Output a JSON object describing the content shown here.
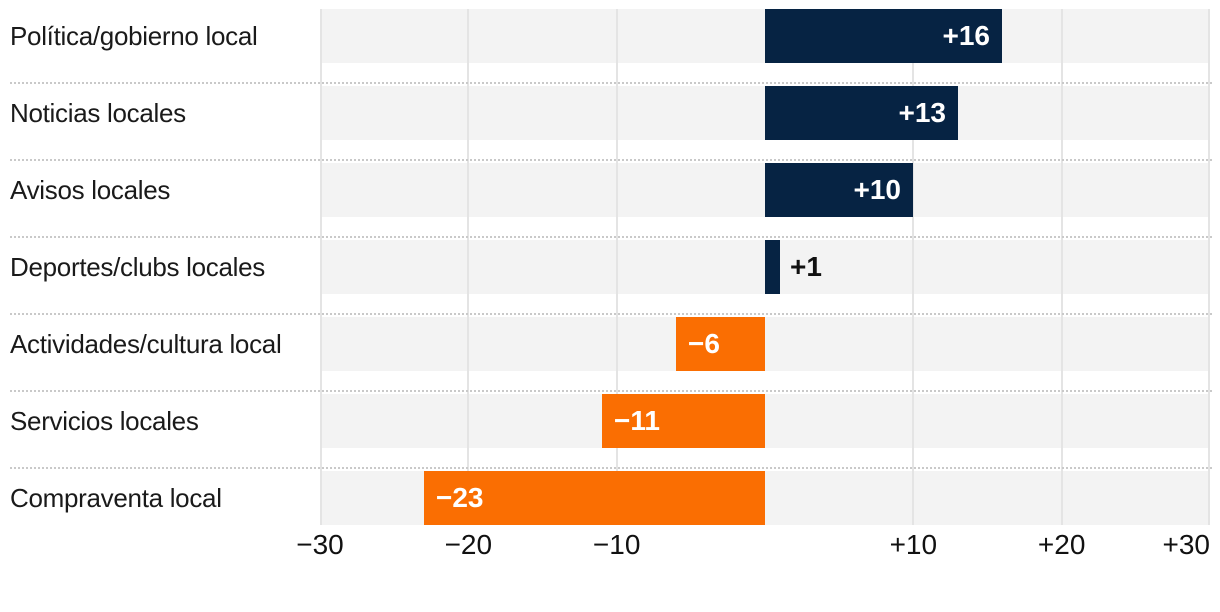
{
  "chart_data": {
    "type": "bar",
    "orientation": "horizontal-diverging",
    "title": "",
    "xlabel": "",
    "ylabel": "",
    "xlim": [
      -30,
      30
    ],
    "grid": "vertical-gridlines-at-ticks-no-zero-line",
    "legend": "none",
    "categories": [
      "Política/gobierno local",
      "Noticias locales",
      "Avisos locales",
      "Deportes/clubs locales",
      "Actividades/cultura local",
      "Servicios locales",
      "Compraventa local"
    ],
    "values": [
      16,
      13,
      10,
      1,
      -6,
      -11,
      -23
    ],
    "rows": [
      {
        "label": "Política/gobierno local",
        "value": 16,
        "display": "+16",
        "label_position": "inside"
      },
      {
        "label": "Noticias locales",
        "value": 13,
        "display": "+13",
        "label_position": "inside"
      },
      {
        "label": "Avisos locales",
        "value": 10,
        "display": "+10",
        "label_position": "inside"
      },
      {
        "label": "Deportes/clubs locales",
        "value": 1,
        "display": "+1",
        "label_position": "outside"
      },
      {
        "label": "Actividades/cultura local",
        "value": -6,
        "display": "−6",
        "label_position": "inside"
      },
      {
        "label": "Servicios locales",
        "value": -11,
        "display": "−11",
        "label_position": "inside"
      },
      {
        "label": "Compraventa local",
        "value": -23,
        "display": "−23",
        "label_position": "inside"
      }
    ],
    "x_ticks": [
      {
        "value": -30,
        "label": "−30"
      },
      {
        "value": -20,
        "label": "−20"
      },
      {
        "value": -10,
        "label": "−10"
      },
      {
        "value": 10,
        "label": "+10"
      },
      {
        "value": 20,
        "label": "+20"
      },
      {
        "value": 30,
        "label": "+30"
      }
    ],
    "colors": {
      "positive_bar": "#062343",
      "negative_bar": "#fa6e02",
      "row_band": "#f3f3f3",
      "gridline": "#e4e4e4",
      "separator": "#c9c9c9",
      "value_label_inside": "#ffffff",
      "value_label_outside": "#111111",
      "category_label": "#1a1a1a",
      "tick_label": "#111111"
    }
  }
}
